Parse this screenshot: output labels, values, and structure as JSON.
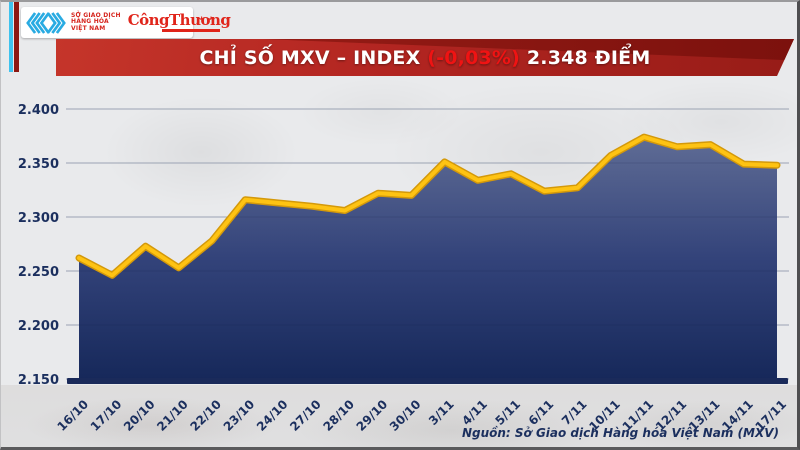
{
  "header": {
    "mxv_logo": {
      "lines": [
        "SỞ GIAO DỊCH",
        "HÀNG HÓA",
        "VIỆT NAM"
      ],
      "icon": "chevrons-icon"
    },
    "congthuong_logo": "CôngThương"
  },
  "banner": {
    "title_prefix": "CHỈ SỐ MXV – INDEX ",
    "change": "(-0,03%)",
    "title_suffix": " 2.348 ĐIỂM"
  },
  "chart_data": {
    "type": "area",
    "title": "CHỈ SỐ MXV – INDEX (-0,03%) 2.348 ĐIỂM",
    "categories": [
      "16/10",
      "17/10",
      "20/10",
      "21/10",
      "22/10",
      "23/10",
      "24/10",
      "27/10",
      "28/10",
      "29/10",
      "30/10",
      "3/11",
      "4/11",
      "5/11",
      "6/11",
      "7/11",
      "10/11",
      "11/11",
      "12/11",
      "13/11",
      "14/11",
      "17/11"
    ],
    "values": [
      2.262,
      2.246,
      2.273,
      2.253,
      2.278,
      2.316,
      2.313,
      2.31,
      2.306,
      2.322,
      2.32,
      2.351,
      2.334,
      2.34,
      2.324,
      2.327,
      2.357,
      2.374,
      2.365,
      2.367,
      2.349,
      2.348
    ],
    "ylim": [
      2.15,
      2.4
    ],
    "ytick_values": [
      2.4,
      2.35,
      2.3,
      2.25,
      2.2,
      2.15
    ],
    "ytick_labels": [
      "2.400",
      "2.350",
      "2.300",
      "2.250",
      "2.200",
      "2.150"
    ],
    "grid": true,
    "legend": "none",
    "colors": {
      "line": "#fec313",
      "line_edge": "#d4990a",
      "fill_top": "#5f6c95",
      "fill_mid": "#33437a",
      "fill_bottom": "#16285a",
      "axis_bar": "#1a2a5a",
      "tick_text": "#1b2f5e",
      "gridline": "#b7bec9"
    }
  },
  "footer": {
    "source": "Nguồn: Sở Giao dịch Hàng hóa Việt Nam (MXV)"
  }
}
